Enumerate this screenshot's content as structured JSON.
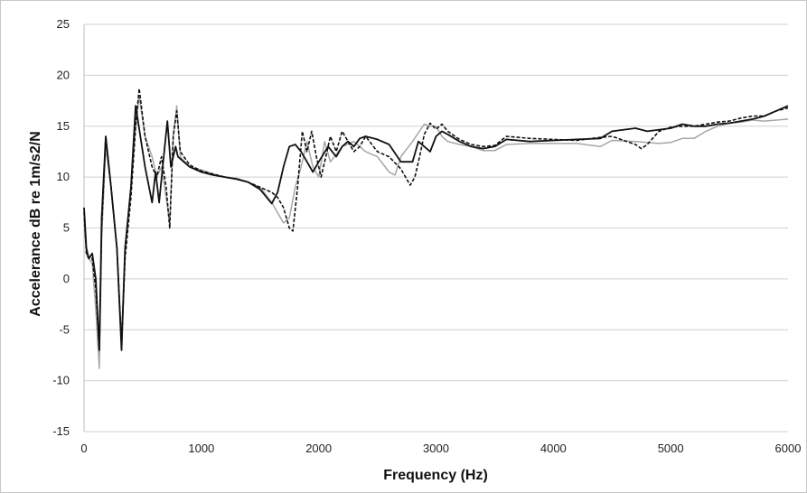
{
  "chart_data": {
    "type": "line",
    "xlabel": "Frequency (Hz)",
    "ylabel": "Accelerance dB re 1m/s2/N",
    "xlim": [
      0,
      6000
    ],
    "ylim": [
      -15,
      25
    ],
    "x_ticks": [
      0,
      1000,
      2000,
      3000,
      4000,
      5000,
      6000
    ],
    "y_ticks": [
      -15,
      -10,
      -5,
      0,
      5,
      10,
      15,
      20,
      25
    ],
    "x_tick_labels": [
      "0",
      "1000",
      "2000",
      "3000",
      "4000",
      "5000",
      "6000"
    ],
    "y_tick_labels": [
      "-15",
      "-10",
      "-5",
      "0",
      "5",
      "10",
      "15",
      "20",
      "25"
    ],
    "grid": "horizontal",
    "legend": "none",
    "series": [
      {
        "color": "#111111",
        "dash": "solid",
        "points": [
          [
            0,
            7
          ],
          [
            20,
            3
          ],
          [
            40,
            2
          ],
          [
            70,
            2.5
          ],
          [
            100,
            0
          ],
          [
            130,
            -7
          ],
          [
            150,
            6
          ],
          [
            185,
            14
          ],
          [
            230,
            9
          ],
          [
            280,
            3
          ],
          [
            320,
            -7
          ],
          [
            350,
            3
          ],
          [
            400,
            9
          ],
          [
            440,
            17
          ],
          [
            480,
            14
          ],
          [
            520,
            11
          ],
          [
            580,
            7.5
          ],
          [
            610,
            10.5
          ],
          [
            640,
            7.5
          ],
          [
            670,
            11
          ],
          [
            710,
            15.5
          ],
          [
            740,
            11
          ],
          [
            780,
            13
          ],
          [
            800,
            12
          ],
          [
            900,
            11
          ],
          [
            1000,
            10.5
          ],
          [
            1100,
            10.2
          ],
          [
            1200,
            10
          ],
          [
            1300,
            9.8
          ],
          [
            1400,
            9.5
          ],
          [
            1500,
            8.8
          ],
          [
            1600,
            7.4
          ],
          [
            1650,
            8.5
          ],
          [
            1700,
            11
          ],
          [
            1750,
            13
          ],
          [
            1800,
            13.2
          ],
          [
            1850,
            12.5
          ],
          [
            1900,
            11.5
          ],
          [
            1950,
            10.5
          ],
          [
            2000,
            11.5
          ],
          [
            2080,
            13
          ],
          [
            2150,
            12
          ],
          [
            2200,
            13
          ],
          [
            2250,
            13.5
          ],
          [
            2300,
            13
          ],
          [
            2350,
            13.8
          ],
          [
            2400,
            14
          ],
          [
            2500,
            13.7
          ],
          [
            2600,
            13.2
          ],
          [
            2700,
            11.5
          ],
          [
            2800,
            11.5
          ],
          [
            2850,
            13.5
          ],
          [
            2900,
            13
          ],
          [
            2950,
            12.5
          ],
          [
            3000,
            14
          ],
          [
            3050,
            14.5
          ],
          [
            3100,
            14.2
          ],
          [
            3200,
            13.5
          ],
          [
            3300,
            13
          ],
          [
            3400,
            12.8
          ],
          [
            3500,
            13
          ],
          [
            3600,
            13.7
          ],
          [
            3800,
            13.5
          ],
          [
            4000,
            13.6
          ],
          [
            4200,
            13.7
          ],
          [
            4400,
            13.8
          ],
          [
            4500,
            14.5
          ],
          [
            4700,
            14.8
          ],
          [
            4800,
            14.5
          ],
          [
            5000,
            14.8
          ],
          [
            5100,
            15.2
          ],
          [
            5200,
            15
          ],
          [
            5300,
            15
          ],
          [
            5400,
            15.2
          ],
          [
            5500,
            15.3
          ],
          [
            5600,
            15.5
          ],
          [
            5700,
            15.7
          ],
          [
            5800,
            16
          ],
          [
            5900,
            16.5
          ],
          [
            6000,
            17
          ]
        ]
      },
      {
        "color": "#111111",
        "dash": "dashed",
        "points": [
          [
            0,
            6.5
          ],
          [
            20,
            2.5
          ],
          [
            40,
            2
          ],
          [
            70,
            2
          ],
          [
            100,
            -1
          ],
          [
            130,
            -7
          ],
          [
            150,
            5
          ],
          [
            185,
            14
          ],
          [
            230,
            9
          ],
          [
            280,
            3
          ],
          [
            320,
            -6.5
          ],
          [
            350,
            2
          ],
          [
            400,
            8
          ],
          [
            440,
            15
          ],
          [
            470,
            18.7
          ],
          [
            520,
            14
          ],
          [
            580,
            11
          ],
          [
            620,
            10
          ],
          [
            660,
            12
          ],
          [
            700,
            9
          ],
          [
            730,
            5
          ],
          [
            760,
            14
          ],
          [
            790,
            16.5
          ],
          [
            820,
            12.5
          ],
          [
            900,
            11.2
          ],
          [
            1000,
            10.6
          ],
          [
            1100,
            10.3
          ],
          [
            1200,
            10
          ],
          [
            1300,
            9.8
          ],
          [
            1400,
            9.5
          ],
          [
            1500,
            9
          ],
          [
            1600,
            8.5
          ],
          [
            1650,
            8
          ],
          [
            1700,
            7
          ],
          [
            1750,
            5
          ],
          [
            1780,
            4.7
          ],
          [
            1820,
            9
          ],
          [
            1860,
            14.5
          ],
          [
            1900,
            12.5
          ],
          [
            1940,
            14.5
          ],
          [
            1980,
            12
          ],
          [
            2020,
            10
          ],
          [
            2060,
            12
          ],
          [
            2100,
            14
          ],
          [
            2150,
            12.5
          ],
          [
            2200,
            14.5
          ],
          [
            2250,
            13.5
          ],
          [
            2300,
            12.5
          ],
          [
            2350,
            13
          ],
          [
            2400,
            14
          ],
          [
            2500,
            12.5
          ],
          [
            2600,
            12
          ],
          [
            2700,
            10.8
          ],
          [
            2780,
            9.2
          ],
          [
            2820,
            10
          ],
          [
            2860,
            12
          ],
          [
            2900,
            14.2
          ],
          [
            2950,
            15.3
          ],
          [
            3000,
            14.7
          ],
          [
            3050,
            15.2
          ],
          [
            3100,
            14.5
          ],
          [
            3200,
            13.7
          ],
          [
            3300,
            13.2
          ],
          [
            3400,
            13
          ],
          [
            3500,
            13.1
          ],
          [
            3600,
            14
          ],
          [
            3800,
            13.8
          ],
          [
            4000,
            13.7
          ],
          [
            4200,
            13.6
          ],
          [
            4400,
            13.9
          ],
          [
            4500,
            14
          ],
          [
            4700,
            13.2
          ],
          [
            4750,
            12.8
          ],
          [
            4800,
            13.2
          ],
          [
            4900,
            14.5
          ],
          [
            5000,
            14.9
          ],
          [
            5100,
            15
          ],
          [
            5200,
            15
          ],
          [
            5300,
            15.2
          ],
          [
            5400,
            15.4
          ],
          [
            5500,
            15.5
          ],
          [
            5600,
            15.8
          ],
          [
            5700,
            16
          ],
          [
            5800,
            16
          ],
          [
            5900,
            16.5
          ],
          [
            6000,
            16.8
          ]
        ]
      },
      {
        "color": "#a6a6a6",
        "dash": "solid",
        "points": [
          [
            0,
            6
          ],
          [
            20,
            2.5
          ],
          [
            40,
            2
          ],
          [
            70,
            1.5
          ],
          [
            100,
            -3
          ],
          [
            130,
            -8.8
          ],
          [
            150,
            4
          ],
          [
            185,
            13
          ],
          [
            230,
            9
          ],
          [
            280,
            3
          ],
          [
            320,
            -6
          ],
          [
            350,
            3
          ],
          [
            400,
            9
          ],
          [
            440,
            15
          ],
          [
            470,
            18
          ],
          [
            520,
            14
          ],
          [
            580,
            12
          ],
          [
            620,
            10
          ],
          [
            660,
            11
          ],
          [
            700,
            8
          ],
          [
            730,
            5.5
          ],
          [
            760,
            14
          ],
          [
            790,
            17
          ],
          [
            820,
            12
          ],
          [
            900,
            11
          ],
          [
            1000,
            10.7
          ],
          [
            1100,
            10.3
          ],
          [
            1200,
            10
          ],
          [
            1300,
            9.9
          ],
          [
            1400,
            9.5
          ],
          [
            1500,
            9
          ],
          [
            1600,
            7.5
          ],
          [
            1650,
            6.5
          ],
          [
            1700,
            5.5
          ],
          [
            1750,
            6
          ],
          [
            1800,
            9
          ],
          [
            1850,
            11
          ],
          [
            1900,
            13.5
          ],
          [
            1950,
            11
          ],
          [
            2000,
            10
          ],
          [
            2050,
            13.5
          ],
          [
            2100,
            11.5
          ],
          [
            2200,
            13
          ],
          [
            2300,
            13.5
          ],
          [
            2400,
            12.5
          ],
          [
            2500,
            12
          ],
          [
            2600,
            10.5
          ],
          [
            2650,
            10.2
          ],
          [
            2700,
            12
          ],
          [
            2800,
            13.5
          ],
          [
            2900,
            15.2
          ],
          [
            2950,
            15
          ],
          [
            3000,
            15
          ],
          [
            3050,
            14
          ],
          [
            3100,
            13.5
          ],
          [
            3200,
            13.2
          ],
          [
            3300,
            13
          ],
          [
            3400,
            12.6
          ],
          [
            3500,
            12.6
          ],
          [
            3600,
            13.2
          ],
          [
            3800,
            13.3
          ],
          [
            4000,
            13.3
          ],
          [
            4200,
            13.3
          ],
          [
            4400,
            13
          ],
          [
            4500,
            13.6
          ],
          [
            4700,
            13.5
          ],
          [
            4900,
            13.3
          ],
          [
            5000,
            13.4
          ],
          [
            5100,
            13.8
          ],
          [
            5200,
            13.8
          ],
          [
            5300,
            14.5
          ],
          [
            5400,
            15
          ],
          [
            5500,
            15.3
          ],
          [
            5600,
            15.4
          ],
          [
            5700,
            15.6
          ],
          [
            5800,
            15.5
          ],
          [
            5900,
            15.6
          ],
          [
            6000,
            15.7
          ]
        ]
      }
    ]
  }
}
